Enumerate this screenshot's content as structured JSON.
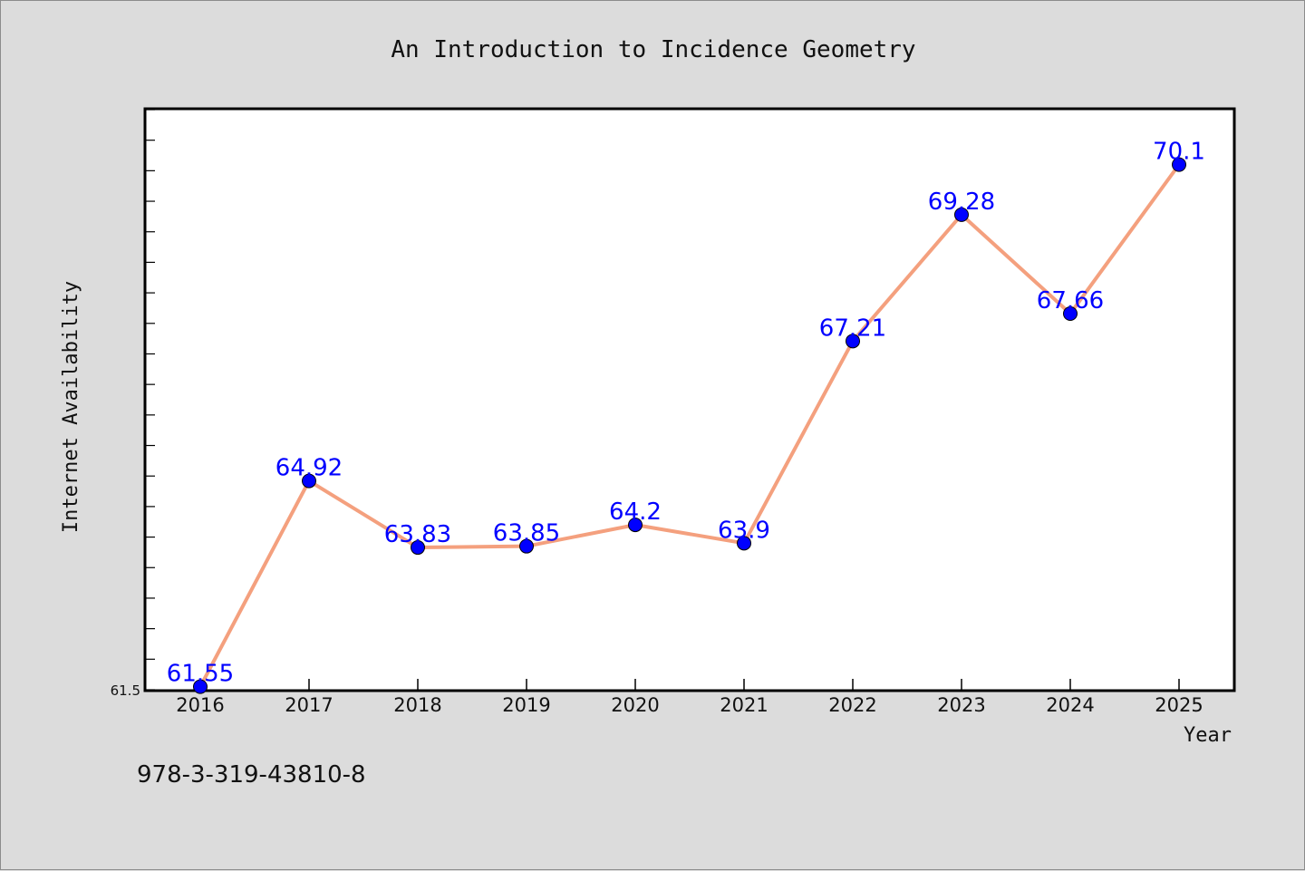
{
  "chart_data": {
    "type": "line",
    "title": "An Introduction to Incidence Geometry",
    "xlabel": "Year",
    "ylabel": "Internet Availability",
    "categories": [
      "2016",
      "2017",
      "2018",
      "2019",
      "2020",
      "2021",
      "2022",
      "2023",
      "2024",
      "2025"
    ],
    "values": [
      61.55,
      64.92,
      63.83,
      63.85,
      64.2,
      63.9,
      67.21,
      69.28,
      67.66,
      70.1
    ],
    "data_labels": [
      "61.55",
      "64.92",
      "63.83",
      "63.85",
      "64.2",
      "63.9",
      "67.21",
      "69.28",
      "67.66",
      "70.1"
    ],
    "ylim": [
      61.5,
      71.0
    ],
    "yticks_labeled": [
      "61.5"
    ],
    "grid": false,
    "line_color": "#f4a07e",
    "marker_color": "#0000ff",
    "label_color": "#0000ff"
  },
  "footer": {
    "isbn": "978-3-319-43810-8"
  }
}
